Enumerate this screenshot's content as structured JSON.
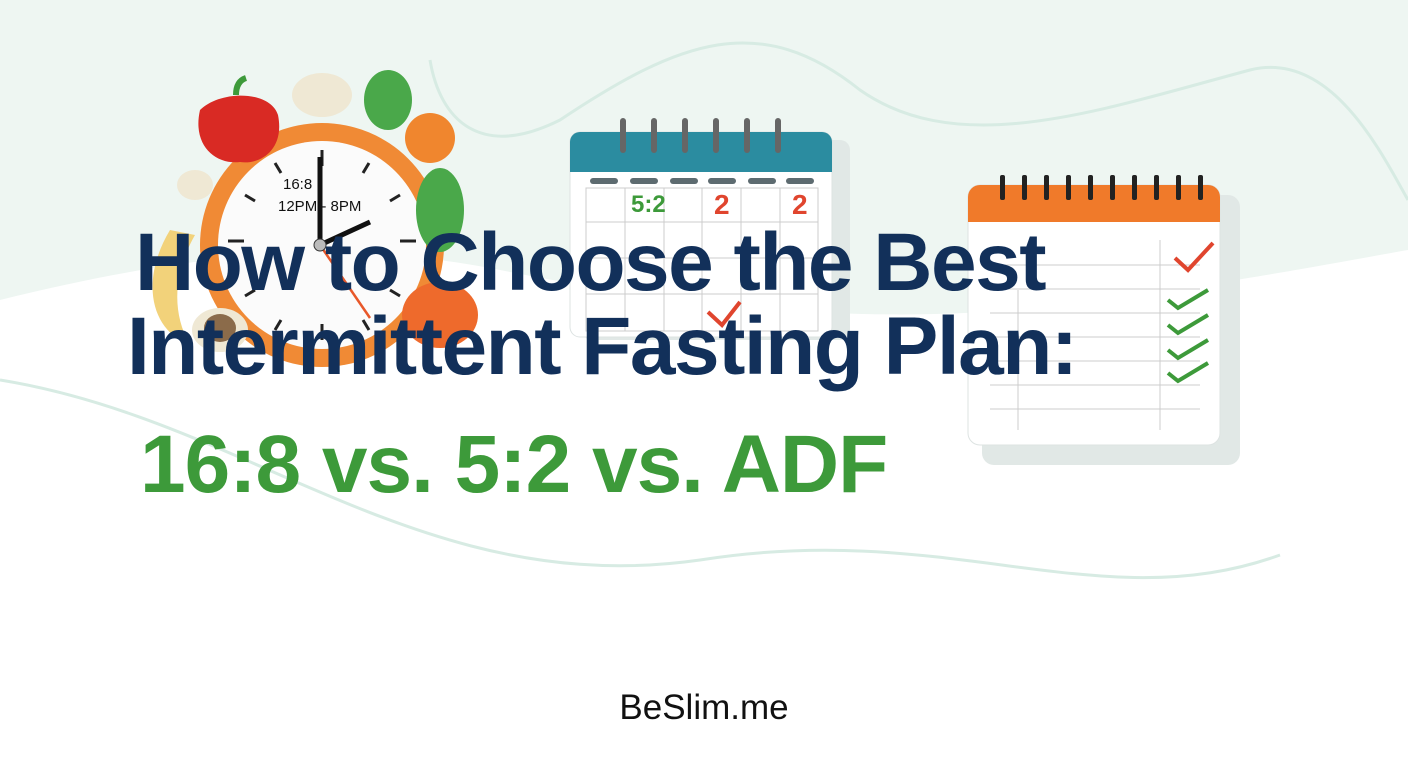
{
  "hero": {
    "title_line1": "How to Choose the Best",
    "title_line2": "Intermittent Fasting Plan:",
    "subtitle": "16:8 vs. 5:2 vs. ADF",
    "brand": "BeSlim.me"
  },
  "clock": {
    "label": "16:8",
    "window": "12PM - 8PM"
  },
  "calendar_5_2": {
    "marks": [
      "2",
      "2",
      "5:2"
    ]
  },
  "icons": [
    "clock-icon",
    "calendar-icon",
    "checklist-icon",
    "bell-pepper-icon",
    "carrot-icon",
    "orange-icon",
    "spinach-icon",
    "mushroom-icon",
    "banana-icon"
  ],
  "colors": {
    "title": "#12305a",
    "subtitle": "#3d9a3a",
    "clock_ring": "#f08a35",
    "calendar_header": "#2b8ca0",
    "checklist_header": "#f07a2a",
    "check_green": "#3d9a3a",
    "check_red": "#e0452e"
  }
}
